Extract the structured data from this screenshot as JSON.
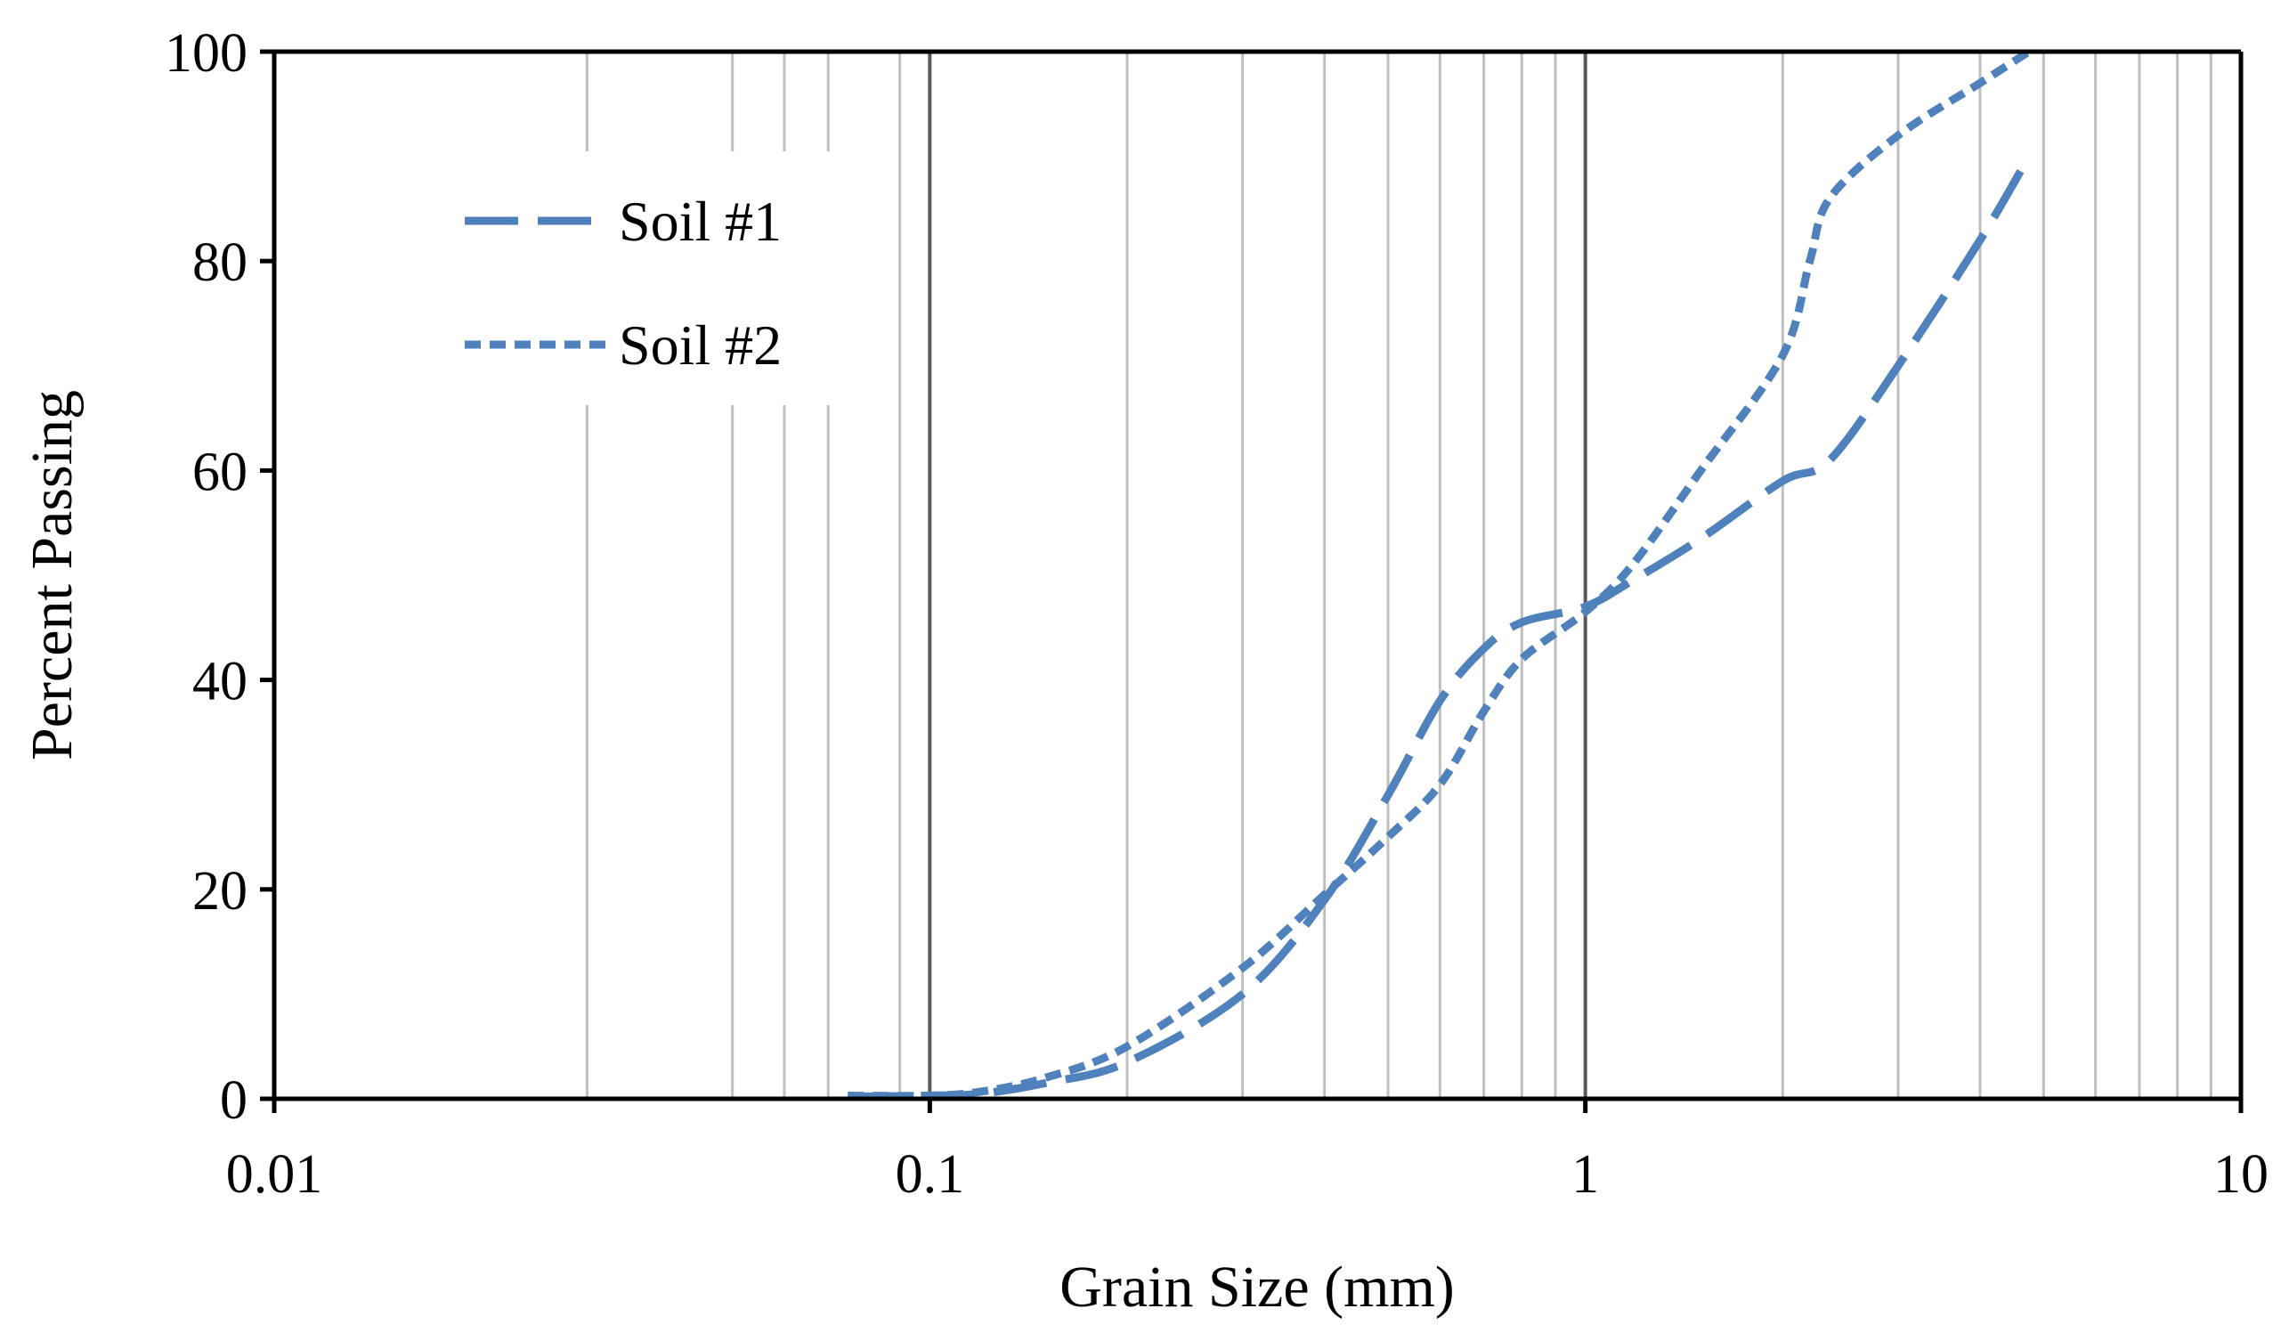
{
  "chart_data": {
    "type": "line",
    "title": "",
    "xlabel": "Grain Size (mm)",
    "ylabel": "Percent Passing",
    "x_scale": "log",
    "xlim": [
      0.01,
      10
    ],
    "ylim": [
      0,
      100
    ],
    "x_ticks": [
      {
        "value": 0.01,
        "label": "0.01"
      },
      {
        "value": 0.1,
        "label": "0.1"
      },
      {
        "value": 1,
        "label": "1"
      },
      {
        "value": 10,
        "label": "10"
      }
    ],
    "y_ticks": [
      {
        "value": 0,
        "label": "0"
      },
      {
        "value": 20,
        "label": "20"
      },
      {
        "value": 40,
        "label": "40"
      },
      {
        "value": 60,
        "label": "60"
      },
      {
        "value": 80,
        "label": "80"
      },
      {
        "value": 100,
        "label": "100"
      }
    ],
    "grid": {
      "vertical_minor": [
        0.03,
        0.05,
        0.06,
        0.07,
        0.09,
        0.2,
        0.3,
        0.4,
        0.5,
        0.6,
        0.7,
        0.8,
        0.9,
        2,
        3,
        4,
        5,
        6,
        7,
        8,
        9
      ],
      "vertical_major": [
        0.1,
        1
      ],
      "horizontal": false
    },
    "legend_position": "top-left",
    "series": [
      {
        "name": "Soil #1",
        "dash": "long-dash",
        "color": "#4F81BD",
        "x": [
          0.075,
          0.1,
          0.12,
          0.15,
          0.2,
          0.3,
          0.4,
          0.5,
          0.6,
          0.7,
          0.8,
          1,
          1.18,
          1.5,
          2,
          2.36,
          3,
          4,
          4.75
        ],
        "y": [
          0.2,
          0.3,
          0.5,
          1.5,
          3.5,
          10,
          19,
          29,
          38,
          43,
          45.5,
          47,
          49.5,
          53.5,
          59,
          61,
          70,
          82,
          90
        ]
      },
      {
        "name": "Soil #2",
        "dash": "short-dash",
        "color": "#4F81BD",
        "x": [
          0.075,
          0.1,
          0.12,
          0.15,
          0.2,
          0.3,
          0.4,
          0.5,
          0.6,
          0.7,
          0.8,
          1,
          1.18,
          1.5,
          2,
          2.2,
          2.36,
          3,
          4,
          4.75
        ],
        "y": [
          0.3,
          0.3,
          0.7,
          2,
          5,
          12.5,
          19.5,
          25,
          30,
          37,
          42,
          46.5,
          51,
          60,
          71,
          80,
          86,
          92,
          97,
          100
        ]
      }
    ]
  }
}
